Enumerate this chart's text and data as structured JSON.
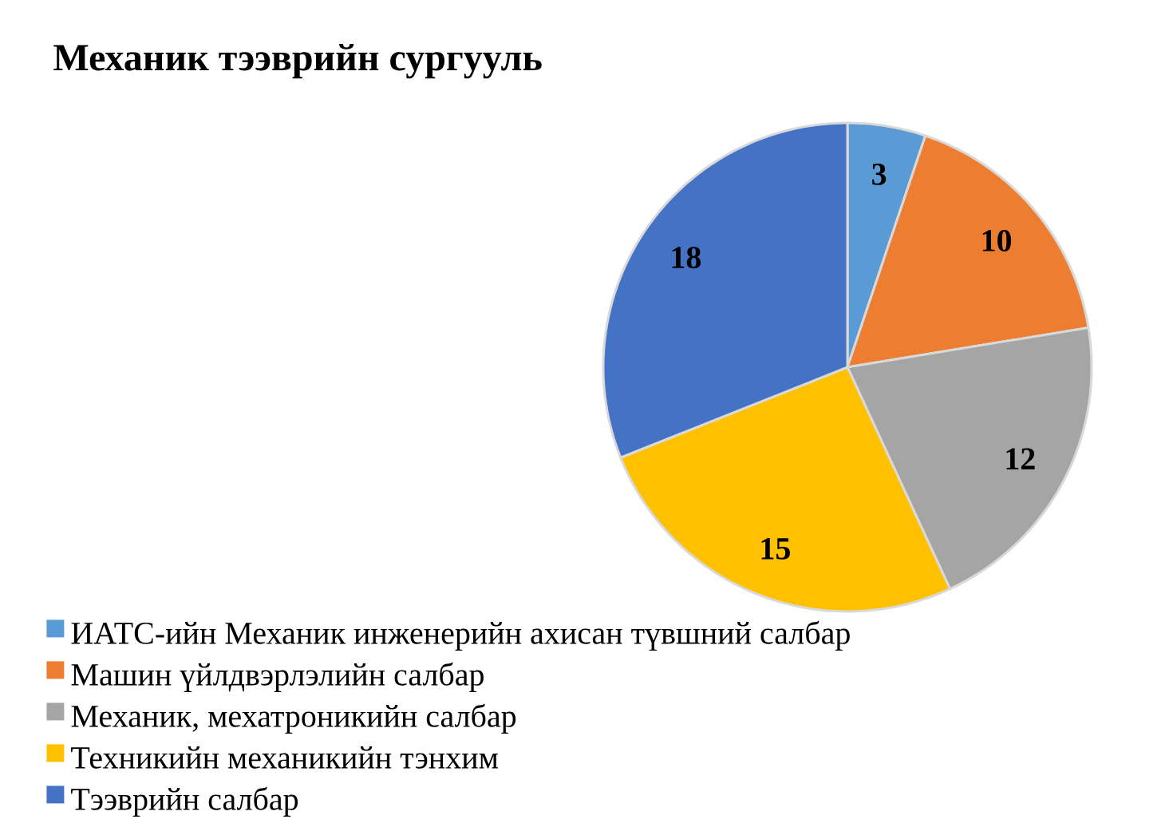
{
  "chart_data": {
    "type": "pie",
    "title": "Механик тээврийн сургууль",
    "categories": [
      "ИАТС-ийн Механик инженерийн ахисан түвшний салбар",
      "Машин үйлдвэрлэлийн салбар",
      "Механик, мехатроникийн салбар",
      "Техникийн механикийн тэнхим",
      "Тээврийн салбар"
    ],
    "values": [
      3,
      10,
      12,
      15,
      18
    ],
    "colors": [
      "#5b9bd5",
      "#ed7d31",
      "#a5a5a5",
      "#ffc000",
      "#4472c4"
    ],
    "data_labels": true,
    "legend": "bottom left"
  }
}
